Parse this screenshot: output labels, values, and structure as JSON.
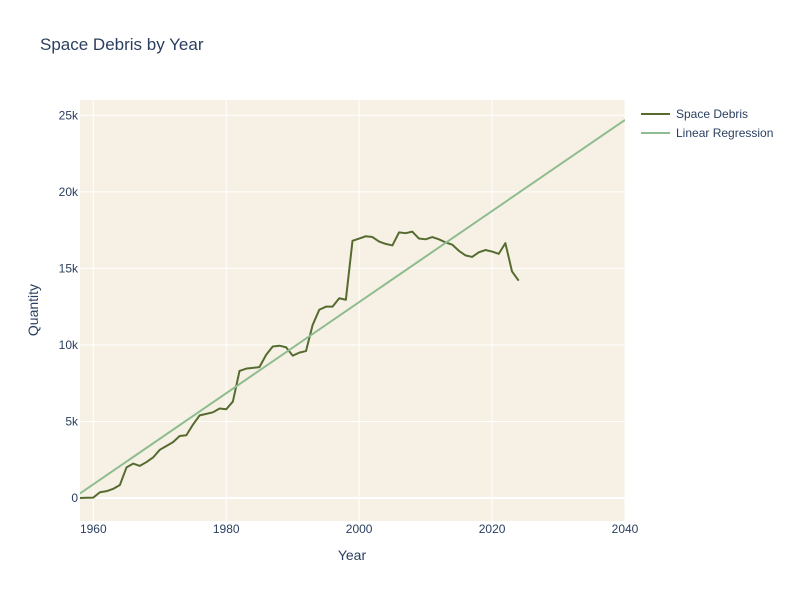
{
  "chart_data": {
    "type": "line",
    "title": "Space Debris by Year",
    "xlabel": "Year",
    "ylabel": "Quantity",
    "xlim": [
      1958,
      2040
    ],
    "ylim": [
      -1500,
      26000
    ],
    "x_ticks": [
      1960,
      1980,
      2000,
      2020,
      2040
    ],
    "y_ticks": [
      0,
      5000,
      10000,
      15000,
      20000,
      25000
    ],
    "y_tick_labels": [
      "0",
      "5k",
      "10k",
      "15k",
      "20k",
      "25k"
    ],
    "grid": true,
    "legend_position": "top-right",
    "plot_background": "#f7f1e5",
    "series": [
      {
        "name": "Space Debris",
        "color": "#556b2f",
        "x": [
          1958,
          1959,
          1960,
          1961,
          1962,
          1963,
          1964,
          1965,
          1966,
          1967,
          1968,
          1969,
          1970,
          1971,
          1972,
          1973,
          1974,
          1975,
          1976,
          1977,
          1978,
          1979,
          1980,
          1981,
          1982,
          1983,
          1984,
          1985,
          1986,
          1987,
          1988,
          1989,
          1990,
          1991,
          1992,
          1993,
          1994,
          1995,
          1996,
          1997,
          1998,
          1999,
          2000,
          2001,
          2002,
          2003,
          2004,
          2005,
          2006,
          2007,
          2008,
          2009,
          2010,
          2011,
          2012,
          2013,
          2014,
          2015,
          2016,
          2017,
          2018,
          2019,
          2020,
          2021,
          2022,
          2023,
          2024
        ],
        "values": [
          0,
          20,
          30,
          380,
          450,
          600,
          850,
          2000,
          2250,
          2100,
          2350,
          2650,
          3150,
          3400,
          3650,
          4050,
          4100,
          4800,
          5400,
          5500,
          5600,
          5850,
          5800,
          6300,
          8300,
          8450,
          8500,
          8550,
          9350,
          9900,
          9950,
          9850,
          9300,
          9500,
          9600,
          11300,
          12300,
          12500,
          12500,
          13050,
          12950,
          16800,
          16950,
          17100,
          17050,
          16750,
          16600,
          16500,
          17350,
          17300,
          17400,
          16950,
          16900,
          17050,
          16900,
          16700,
          16550,
          16150,
          15850,
          15750,
          16050,
          16200,
          16100,
          15950,
          16650,
          14800,
          14200
        ]
      },
      {
        "name": "Linear Regression",
        "color": "#8fbc8f",
        "x": [
          1958,
          2040
        ],
        "values": [
          300,
          24700
        ]
      }
    ]
  }
}
